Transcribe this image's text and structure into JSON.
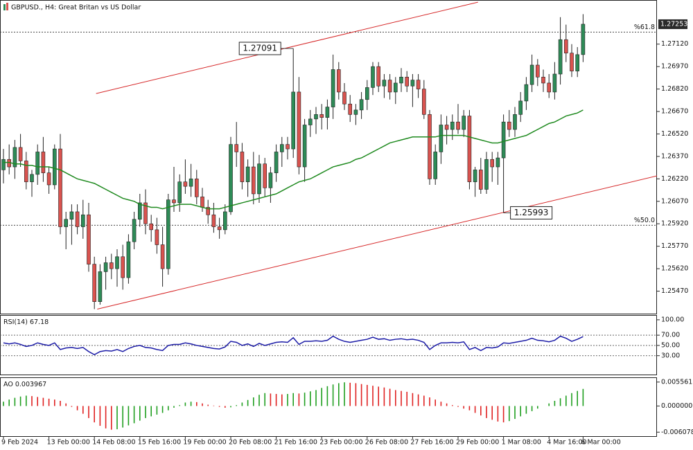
{
  "chart_data": [
    {
      "type": "candlestick",
      "title": "GBPUSD., H4:  Great Britan vs US Dollar",
      "categories": [
        "9 Feb 2024",
        null,
        null,
        null,
        null,
        null,
        null,
        null,
        "13 Feb 00:00",
        null,
        null,
        null,
        null,
        null,
        null,
        null,
        "14 Feb 08:00",
        null,
        null,
        null,
        null,
        null,
        null,
        null,
        "15 Feb 16:00",
        null,
        null,
        null,
        null,
        null,
        null,
        null,
        "19 Feb 00:00",
        null,
        null,
        null,
        null,
        null,
        null,
        null,
        "20 Feb 08:00",
        null,
        null,
        null,
        null,
        null,
        null,
        null,
        "21 Feb 16:00",
        null,
        null,
        null,
        null,
        null,
        null,
        null,
        "23 Feb 00:00",
        null,
        null,
        null,
        null,
        null,
        null,
        null,
        "26 Feb 08:00",
        null,
        null,
        null,
        null,
        null,
        null,
        null,
        "27 Feb 16:00",
        null,
        null,
        null,
        null,
        null,
        null,
        null,
        "29 Feb 00:00",
        null,
        null,
        null,
        null,
        null,
        null,
        null,
        "1 Mar 08:00",
        null,
        null,
        null,
        null,
        null,
        null,
        null,
        "4 Mar 16:00",
        null,
        null,
        null,
        null,
        null,
        "6 Mar 00:00"
      ],
      "candles": [
        [
          1.2628,
          1.2642,
          1.2619,
          1.2635
        ],
        [
          1.2635,
          1.2645,
          1.2625,
          1.263
        ],
        [
          1.263,
          1.2648,
          1.2622,
          1.2643
        ],
        [
          1.2643,
          1.2652,
          1.263,
          1.2634
        ],
        [
          1.2634,
          1.264,
          1.2615,
          1.262
        ],
        [
          1.262,
          1.2628,
          1.261,
          1.2625
        ],
        [
          1.2625,
          1.2645,
          1.2618,
          1.264
        ],
        [
          1.264,
          1.265,
          1.262,
          1.2626
        ],
        [
          1.2626,
          1.263,
          1.2612,
          1.2618
        ],
        [
          1.2618,
          1.2645,
          1.2615,
          1.2642
        ],
        [
          1.2642,
          1.2652,
          1.2585,
          1.259
        ],
        [
          1.259,
          1.26,
          1.2575,
          1.2595
        ],
        [
          1.2595,
          1.2605,
          1.2578,
          1.26
        ],
        [
          1.26,
          1.2605,
          1.2585,
          1.259
        ],
        [
          1.259,
          1.2608,
          1.2582,
          1.2598
        ],
        [
          1.2598,
          1.2606,
          1.256,
          1.2565
        ],
        [
          1.2565,
          1.257,
          1.2535,
          1.254
        ],
        [
          1.254,
          1.2565,
          1.2538,
          1.256
        ],
        [
          1.256,
          1.257,
          1.2548,
          1.2566
        ],
        [
          1.2566,
          1.2572,
          1.2555,
          1.2562
        ],
        [
          1.2562,
          1.2575,
          1.255,
          1.257
        ],
        [
          1.257,
          1.2578,
          1.2548,
          1.2556
        ],
        [
          1.2556,
          1.2585,
          1.2552,
          1.258
        ],
        [
          1.258,
          1.26,
          1.2575,
          1.2595
        ],
        [
          1.2595,
          1.2612,
          1.259,
          1.2606
        ],
        [
          1.2606,
          1.2615,
          1.2585,
          1.2592
        ],
        [
          1.2592,
          1.2598,
          1.258,
          1.2588
        ],
        [
          1.2588,
          1.2596,
          1.2572,
          1.2578
        ],
        [
          1.2578,
          1.259,
          1.255,
          1.2562
        ],
        [
          1.2562,
          1.2612,
          1.2558,
          1.2608
        ],
        [
          1.2608,
          1.263,
          1.26,
          1.2606
        ],
        [
          1.2606,
          1.2625,
          1.26,
          1.262
        ],
        [
          1.262,
          1.2635,
          1.2612,
          1.2617
        ],
        [
          1.2617,
          1.2632,
          1.261,
          1.2622
        ],
        [
          1.2622,
          1.2628,
          1.2605,
          1.261
        ],
        [
          1.261,
          1.2616,
          1.26,
          1.2603
        ],
        [
          1.2603,
          1.2608,
          1.2592,
          1.2598
        ],
        [
          1.2598,
          1.2606,
          1.2586,
          1.259
        ],
        [
          1.259,
          1.2596,
          1.2582,
          1.2588
        ],
        [
          1.2588,
          1.2605,
          1.2585,
          1.26
        ],
        [
          1.26,
          1.265,
          1.2598,
          1.2645
        ],
        [
          1.2645,
          1.266,
          1.263,
          1.264
        ],
        [
          1.264,
          1.2646,
          1.2615,
          1.262
        ],
        [
          1.262,
          1.2635,
          1.261,
          1.263
        ],
        [
          1.263,
          1.264,
          1.2605,
          1.2612
        ],
        [
          1.2612,
          1.2638,
          1.2606,
          1.2632
        ],
        [
          1.2632,
          1.2636,
          1.261,
          1.2616
        ],
        [
          1.2616,
          1.263,
          1.2606,
          1.2626
        ],
        [
          1.2626,
          1.2645,
          1.262,
          1.264
        ],
        [
          1.264,
          1.265,
          1.263,
          1.2645
        ],
        [
          1.2645,
          1.265,
          1.2635,
          1.2642
        ],
        [
          1.2642,
          1.27091,
          1.2636,
          1.268
        ],
        [
          1.268,
          1.269,
          1.2625,
          1.263
        ],
        [
          1.263,
          1.2662,
          1.262,
          1.2658
        ],
        [
          1.2658,
          1.2668,
          1.265,
          1.2662
        ],
        [
          1.2662,
          1.267,
          1.2652,
          1.2665
        ],
        [
          1.2665,
          1.2672,
          1.2655,
          1.2663
        ],
        [
          1.2663,
          1.2675,
          1.2655,
          1.267
        ],
        [
          1.267,
          1.2705,
          1.2662,
          1.2695
        ],
        [
          1.2695,
          1.27,
          1.2675,
          1.268
        ],
        [
          1.268,
          1.2686,
          1.2668,
          1.2672
        ],
        [
          1.2672,
          1.2678,
          1.266,
          1.2665
        ],
        [
          1.2665,
          1.2672,
          1.2658,
          1.2668
        ],
        [
          1.2668,
          1.268,
          1.2662,
          1.2675
        ],
        [
          1.2675,
          1.2688,
          1.2668,
          1.2683
        ],
        [
          1.2683,
          1.27,
          1.2678,
          1.2697
        ],
        [
          1.2697,
          1.27,
          1.268,
          1.2684
        ],
        [
          1.2684,
          1.2692,
          1.2676,
          1.2688
        ],
        [
          1.2688,
          1.2692,
          1.2675,
          1.268
        ],
        [
          1.268,
          1.269,
          1.2672,
          1.2686
        ],
        [
          1.2686,
          1.2696,
          1.268,
          1.269
        ],
        [
          1.269,
          1.2694,
          1.268,
          1.2684
        ],
        [
          1.2684,
          1.2692,
          1.267,
          1.2688
        ],
        [
          1.2688,
          1.2692,
          1.2676,
          1.2682
        ],
        [
          1.2682,
          1.2688,
          1.2662,
          1.2665
        ],
        [
          1.2665,
          1.2668,
          1.2618,
          1.2622
        ],
        [
          1.2622,
          1.2645,
          1.2618,
          1.264
        ],
        [
          1.264,
          1.2665,
          1.2632,
          1.2658
        ],
        [
          1.2658,
          1.2664,
          1.2645,
          1.2655
        ],
        [
          1.2655,
          1.2665,
          1.2648,
          1.266
        ],
        [
          1.266,
          1.2672,
          1.2652,
          1.2655
        ],
        [
          1.2655,
          1.2668,
          1.265,
          1.2664
        ],
        [
          1.2664,
          1.2668,
          1.2615,
          1.262
        ],
        [
          1.262,
          1.263,
          1.261,
          1.2628
        ],
        [
          1.2628,
          1.2636,
          1.2612,
          1.2615
        ],
        [
          1.2615,
          1.264,
          1.2612,
          1.2635
        ],
        [
          1.2635,
          1.264,
          1.262,
          1.263
        ],
        [
          1.263,
          1.264,
          1.2618,
          1.2636
        ],
        [
          1.2636,
          1.2665,
          1.25993,
          1.266
        ],
        [
          1.266,
          1.2668,
          1.265,
          1.2655
        ],
        [
          1.2655,
          1.267,
          1.265,
          1.2665
        ],
        [
          1.2665,
          1.268,
          1.266,
          1.2674
        ],
        [
          1.2674,
          1.269,
          1.2668,
          1.2685
        ],
        [
          1.2685,
          1.2705,
          1.268,
          1.2698
        ],
        [
          1.2698,
          1.2702,
          1.2684,
          1.269
        ],
        [
          1.269,
          1.2695,
          1.268,
          1.2686
        ],
        [
          1.2686,
          1.2692,
          1.2676,
          1.268
        ],
        [
          1.268,
          1.27,
          1.2675,
          1.2692
        ],
        [
          1.2692,
          1.273,
          1.2685,
          1.2715
        ],
        [
          1.2715,
          1.2725,
          1.27,
          1.2706
        ],
        [
          1.2706,
          1.2712,
          1.269,
          1.2694
        ],
        [
          1.2694,
          1.271,
          1.269,
          1.2705
        ],
        [
          1.2705,
          1.2732,
          1.27,
          1.27253
        ]
      ],
      "up_color": "#2e8b57",
      "down_color": "#d9534f",
      "wick_color": "#222222",
      "moving_average": {
        "color": "#1f8a1f",
        "values": [
          1.2633,
          1.2633,
          1.2632,
          1.2632,
          1.2631,
          1.2631,
          1.263,
          1.263,
          1.263,
          1.2629,
          1.2628,
          1.2626,
          1.2624,
          1.2622,
          1.2621,
          1.262,
          1.2619,
          1.2617,
          1.2615,
          1.2613,
          1.2611,
          1.2609,
          1.2608,
          1.2607,
          1.2605,
          1.2604,
          1.2603,
          1.2603,
          1.2602,
          1.2603,
          1.2604,
          1.2605,
          1.2605,
          1.2605,
          1.2604,
          1.2603,
          1.2602,
          1.2602,
          1.2602,
          1.2603,
          1.2604,
          1.2605,
          1.2606,
          1.2607,
          1.2608,
          1.2609,
          1.261,
          1.2611,
          1.2612,
          1.2614,
          1.2616,
          1.2618,
          1.262,
          1.2621,
          1.2622,
          1.2624,
          1.2626,
          1.2628,
          1.263,
          1.2631,
          1.2632,
          1.2633,
          1.2635,
          1.2636,
          1.2638,
          1.264,
          1.2642,
          1.2644,
          1.2646,
          1.2647,
          1.2648,
          1.2649,
          1.265,
          1.265,
          1.265,
          1.265,
          1.265,
          1.2651,
          1.2651,
          1.2651,
          1.2651,
          1.2651,
          1.265,
          1.2649,
          1.2648,
          1.2647,
          1.2646,
          1.2646,
          1.2647,
          1.2648,
          1.2649,
          1.265,
          1.2651,
          1.2653,
          1.2655,
          1.2657,
          1.2659,
          1.266,
          1.2662,
          1.2664,
          1.2665,
          1.2666,
          1.2668
        ]
      },
      "channel": {
        "color": "#d62728",
        "lines": [
          [
            [
              16.3,
              1.2679
            ],
            [
              83.5,
              1.274
            ]
          ],
          [
            [
              16.5,
              1.2535
            ],
            [
              115,
              1.2624
            ]
          ]
        ]
      },
      "price_marks": [
        {
          "candle": 51,
          "value": 1.27091
        },
        {
          "candle": 88,
          "value": 1.25993
        }
      ],
      "fib_levels": [
        {
          "label": "%61.8",
          "value": 1.272
        },
        {
          "label": "%50.0",
          "value": 1.2591
        }
      ],
      "ylim": [
        1.2532,
        1.2741
      ],
      "yticks": [
        {
          "value": 1.2712,
          "label": "1.27120"
        },
        {
          "value": 1.2697,
          "label": "1.26970"
        },
        {
          "value": 1.2682,
          "label": "1.26820"
        },
        {
          "value": 1.2667,
          "label": "1.26670"
        },
        {
          "value": 1.2652,
          "label": "1.26520"
        },
        {
          "value": 1.2637,
          "label": "1.26370"
        },
        {
          "value": 1.2622,
          "label": "1.26220"
        },
        {
          "value": 1.2607,
          "label": "1.26070"
        },
        {
          "value": 1.2592,
          "label": "1.25920"
        },
        {
          "value": 1.2577,
          "label": "1.25770"
        },
        {
          "value": 1.2562,
          "label": "1.25620"
        },
        {
          "value": 1.2547,
          "label": "1.25470"
        }
      ]
    },
    {
      "type": "line",
      "title": "RSI(14)",
      "color": "#1a1aa6",
      "values": [
        55,
        53,
        55,
        52,
        48,
        50,
        55,
        52,
        50,
        55,
        42,
        45,
        46,
        44,
        46,
        38,
        32,
        38,
        40,
        39,
        42,
        38,
        44,
        48,
        50,
        46,
        45,
        42,
        40,
        50,
        52,
        52,
        55,
        53,
        50,
        48,
        46,
        44,
        43,
        47,
        58,
        56,
        50,
        53,
        48,
        54,
        50,
        53,
        56,
        57,
        56,
        65,
        52,
        58,
        58,
        59,
        58,
        60,
        68,
        62,
        58,
        56,
        58,
        60,
        62,
        66,
        62,
        63,
        60,
        62,
        63,
        61,
        62,
        60,
        56,
        42,
        50,
        55,
        55,
        56,
        55,
        57,
        42,
        46,
        40,
        46,
        45,
        47,
        55,
        54,
        56,
        58,
        60,
        64,
        60,
        59,
        57,
        60,
        68,
        64,
        58,
        62,
        67.18
      ],
      "levels": [
        70,
        50,
        30
      ],
      "ylim": [
        -6.8,
        108
      ],
      "yticks": [
        {
          "value": 100,
          "label": "100.00"
        },
        {
          "value": 70,
          "label": "70.00"
        },
        {
          "value": 50,
          "label": "50.00"
        },
        {
          "value": 30,
          "label": "30.00"
        }
      ]
    },
    {
      "type": "histogram",
      "title": "AO",
      "up_color": "#1e9e1e",
      "down_color": "#e02020",
      "values": [
        0.001,
        0.0015,
        0.0019,
        0.0022,
        0.0024,
        0.0023,
        0.0021,
        0.0019,
        0.0017,
        0.0015,
        0.0012,
        0.0006,
        -0.0002,
        -0.001,
        -0.0018,
        -0.0028,
        -0.0038,
        -0.0046,
        -0.0052,
        -0.0055,
        -0.0054,
        -0.005,
        -0.0045,
        -0.004,
        -0.0034,
        -0.0028,
        -0.0024,
        -0.002,
        -0.0016,
        -0.001,
        -0.0004,
        0.0002,
        0.0008,
        0.001,
        0.0009,
        0.0006,
        0.0003,
        0.0001,
        -0.0002,
        -0.0004,
        -0.0003,
        0.0002,
        0.0008,
        0.0014,
        0.002,
        0.0026,
        0.003,
        0.0029,
        0.0028,
        0.0027,
        0.0028,
        0.003,
        0.0029,
        0.0031,
        0.0034,
        0.0037,
        0.0042,
        0.0046,
        0.005,
        0.0053,
        0.0055,
        0.0054,
        0.0053,
        0.0051,
        0.0049,
        0.0047,
        0.0045,
        0.0043,
        0.004,
        0.0037,
        0.0035,
        0.0033,
        0.003,
        0.0027,
        0.0024,
        0.002,
        0.0015,
        0.001,
        0.0006,
        0.0002,
        -0.0002,
        -0.0006,
        -0.001,
        -0.0016,
        -0.0022,
        -0.0028,
        -0.0032,
        -0.0036,
        -0.0038,
        -0.0035,
        -0.003,
        -0.0024,
        -0.0018,
        -0.0012,
        -0.0006,
        0.0,
        0.0006,
        0.0012,
        0.0018,
        0.0024,
        0.003,
        0.0035,
        0.003967
      ],
      "ylim": [
        -0.007,
        0.0065
      ],
      "yticks": [
        0.005561,
        {
          "value": 0,
          "label": "0.000000"
        },
        -0.006078
      ]
    }
  ]
}
